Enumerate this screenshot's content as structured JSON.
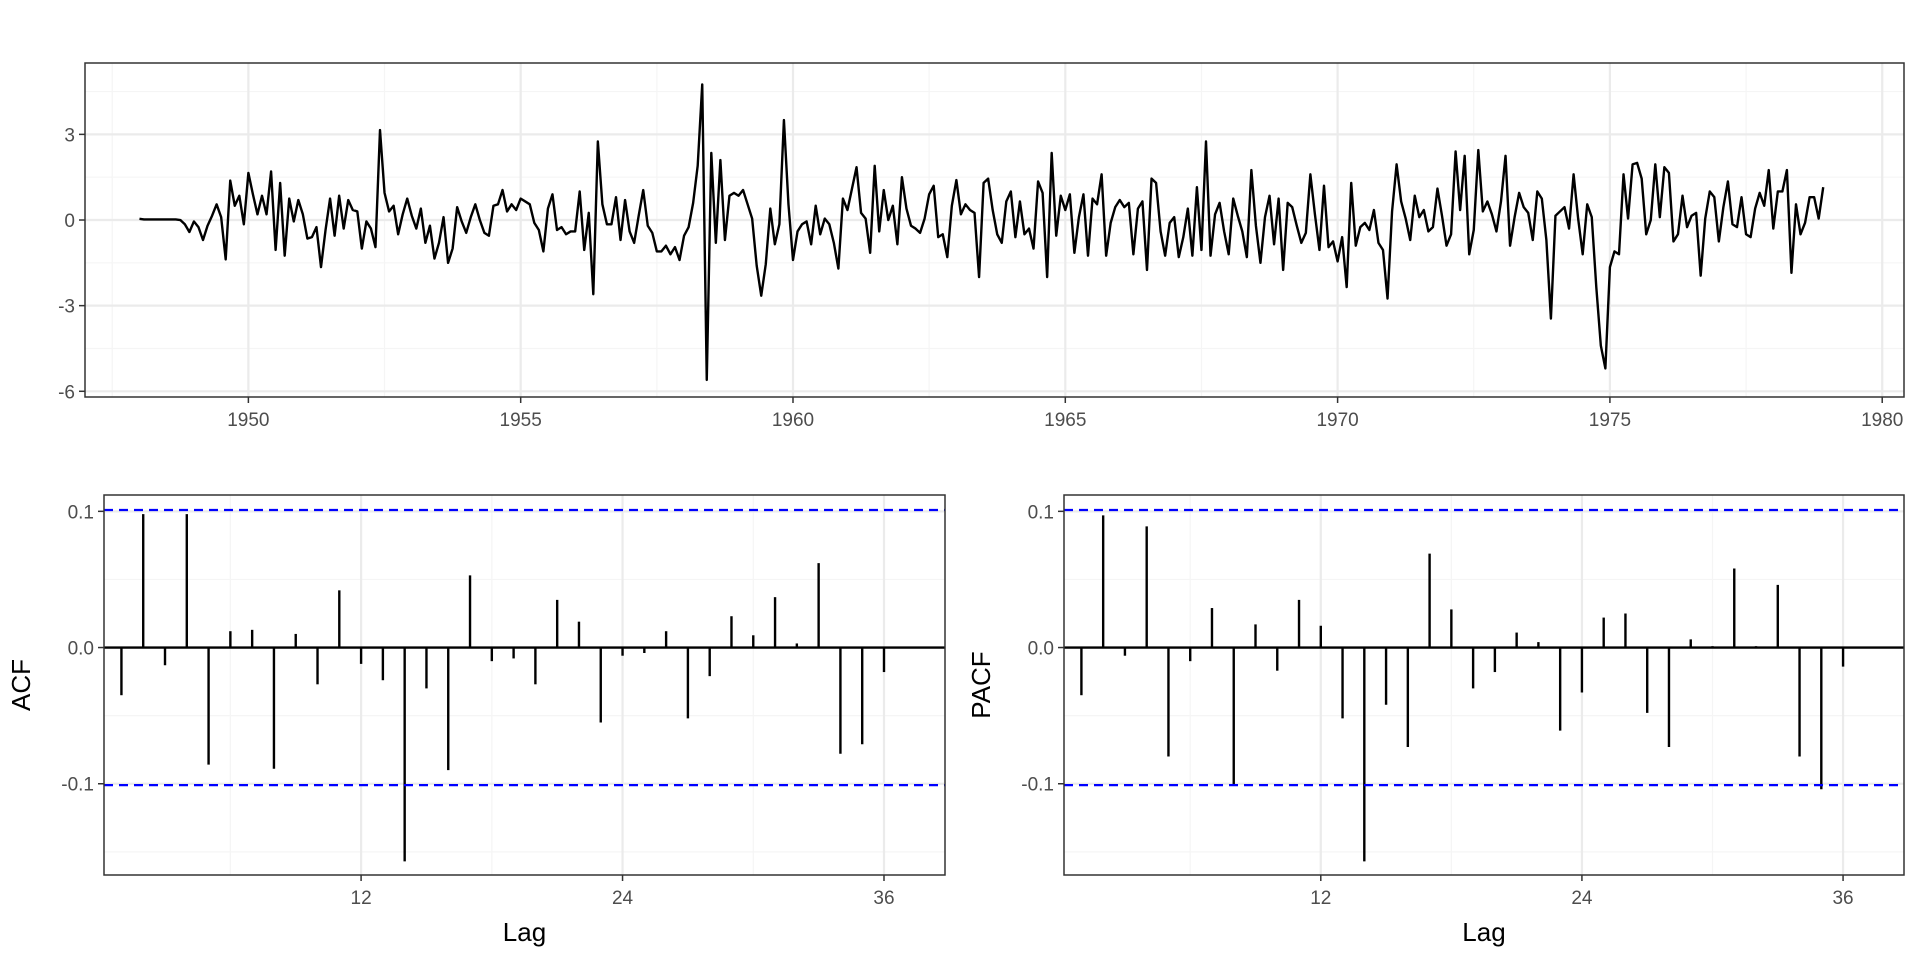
{
  "colors": {
    "line": "#000000",
    "ci": "#0000ff",
    "grid_major": "#ebebeb",
    "grid_minor": "#f5f5f5",
    "border": "#333333",
    "tick_text": "#4d4d4d"
  },
  "chart_data": [
    {
      "type": "line",
      "title": "",
      "xlabel": "",
      "ylabel": "",
      "xlim": [
        1947.0,
        1980.4
      ],
      "ylim": [
        -6.2,
        5.5
      ],
      "xticks": [
        1950,
        1955,
        1960,
        1965,
        1970,
        1975,
        1980
      ],
      "xtick_labels": [
        "1950",
        "1955",
        "1960",
        "1965",
        "1970",
        "1975",
        "1980"
      ],
      "yticks": [
        -6,
        -3,
        0,
        3
      ],
      "ytick_labels": [
        "-6",
        "-3",
        "0",
        "3"
      ],
      "grid": true,
      "x_start": 1948.0,
      "x_step": 0.08333333,
      "values": [
        0.04,
        0.02,
        0.02,
        0.02,
        0.02,
        0.02,
        0.02,
        0.02,
        0.02,
        0.0,
        -0.15,
        -0.42,
        -0.05,
        -0.25,
        -0.7,
        -0.2,
        0.15,
        0.55,
        0.1,
        -1.38,
        1.38,
        0.5,
        0.85,
        -0.15,
        1.65,
        0.9,
        0.2,
        0.85,
        0.2,
        1.7,
        -1.05,
        1.3,
        -1.25,
        0.75,
        -0.05,
        0.7,
        0.2,
        -0.65,
        -0.6,
        -0.25,
        -1.65,
        -0.35,
        0.75,
        -0.55,
        0.85,
        -0.3,
        0.7,
        0.35,
        0.3,
        -1.0,
        -0.05,
        -0.3,
        -0.95,
        3.15,
        0.95,
        0.3,
        0.5,
        -0.5,
        0.2,
        0.75,
        0.15,
        -0.3,
        0.4,
        -0.8,
        -0.2,
        -1.35,
        -0.8,
        0.1,
        -1.5,
        -1.0,
        0.45,
        -0.05,
        -0.45,
        0.1,
        0.55,
        0.0,
        -0.45,
        -0.55,
        0.5,
        0.55,
        1.05,
        0.3,
        0.55,
        0.35,
        0.75,
        0.65,
        0.55,
        -0.1,
        -0.35,
        -1.1,
        0.4,
        0.9,
        -0.35,
        -0.25,
        -0.5,
        -0.4,
        -0.4,
        1.0,
        -1.05,
        0.25,
        -2.6,
        2.75,
        0.55,
        -0.15,
        -0.15,
        0.8,
        -0.7,
        0.7,
        -0.4,
        -0.8,
        0.15,
        1.05,
        -0.2,
        -0.45,
        -1.1,
        -1.1,
        -0.9,
        -1.2,
        -0.95,
        -1.4,
        -0.55,
        -0.25,
        0.6,
        1.9,
        4.75,
        -5.6,
        2.35,
        -0.8,
        2.1,
        -0.7,
        0.85,
        0.95,
        0.85,
        1.05,
        0.55,
        0.05,
        -1.6,
        -2.65,
        -1.55,
        0.4,
        -0.85,
        -0.15,
        3.5,
        0.55,
        -1.4,
        -0.4,
        -0.15,
        -0.05,
        -0.85,
        0.5,
        -0.5,
        0.05,
        -0.15,
        -0.8,
        -1.7,
        0.75,
        0.35,
        1.1,
        1.85,
        0.25,
        0.05,
        -1.15,
        1.9,
        -0.4,
        1.05,
        0.0,
        0.5,
        -0.85,
        1.5,
        0.4,
        -0.2,
        -0.3,
        -0.45,
        0.05,
        0.9,
        1.2,
        -0.6,
        -0.5,
        -1.3,
        0.5,
        1.4,
        0.2,
        0.55,
        0.35,
        0.25,
        -2.0,
        1.3,
        1.45,
        0.35,
        -0.5,
        -0.8,
        0.65,
        1.0,
        -0.6,
        0.65,
        -0.5,
        -0.3,
        -1.0,
        1.35,
        0.95,
        -2.0,
        2.35,
        -0.55,
        0.85,
        0.35,
        0.9,
        -1.15,
        0.1,
        0.9,
        -1.25,
        0.75,
        0.55,
        1.6,
        -1.25,
        -0.1,
        0.45,
        0.7,
        0.45,
        0.6,
        -1.2,
        0.4,
        0.65,
        -1.75,
        1.45,
        1.3,
        -0.4,
        -1.25,
        -0.1,
        0.1,
        -1.3,
        -0.6,
        0.4,
        -1.25,
        1.15,
        -1.05,
        2.75,
        -1.25,
        0.2,
        0.6,
        -0.4,
        -1.2,
        0.75,
        0.15,
        -0.4,
        -1.3,
        1.75,
        -0.2,
        -1.5,
        0.1,
        0.85,
        -0.85,
        0.75,
        -1.75,
        0.6,
        0.45,
        -0.2,
        -0.8,
        -0.45,
        1.6,
        0.2,
        -1.05,
        1.2,
        -0.95,
        -0.75,
        -1.45,
        -0.6,
        -2.35,
        1.3,
        -0.9,
        -0.25,
        -0.1,
        -0.35,
        0.35,
        -0.8,
        -1.05,
        -2.75,
        0.3,
        1.95,
        0.65,
        0.05,
        -0.7,
        0.85,
        0.1,
        0.35,
        -0.4,
        -0.25,
        1.1,
        0.15,
        -0.9,
        -0.5,
        2.4,
        0.35,
        2.25,
        -1.2,
        -0.35,
        2.45,
        0.3,
        0.65,
        0.2,
        -0.4,
        0.65,
        2.25,
        -0.9,
        0.1,
        0.95,
        0.45,
        0.25,
        -0.7,
        1.0,
        0.75,
        -0.7,
        -3.45,
        0.15,
        0.3,
        0.45,
        -0.3,
        1.6,
        0.05,
        -1.2,
        0.55,
        0.1,
        -2.35,
        -4.4,
        -5.2,
        -1.65,
        -1.1,
        -1.2,
        1.6,
        0.05,
        1.95,
        2.0,
        1.45,
        -0.5,
        0.0,
        1.95,
        0.1,
        1.85,
        1.65,
        -0.75,
        -0.5,
        0.85,
        -0.25,
        0.15,
        0.25,
        -1.95,
        0.05,
        1.0,
        0.8,
        -0.75,
        0.45,
        1.35,
        -0.15,
        -0.25,
        0.8,
        -0.5,
        -0.6,
        0.4,
        0.95,
        0.5,
        1.75,
        -0.3,
        1.0,
        1.0,
        1.75,
        -1.85,
        0.55,
        -0.5,
        -0.1,
        0.8,
        0.8,
        0.05,
        1.15
      ]
    },
    {
      "type": "bar",
      "title": "",
      "xlabel": "Lag",
      "ylabel": "ACF",
      "xlim": [
        0.2,
        38.8
      ],
      "ylim": [
        -0.167,
        0.112
      ],
      "xticks": [
        12,
        24,
        36
      ],
      "xtick_labels": [
        "12",
        "24",
        "36"
      ],
      "yticks": [
        -0.1,
        0.0,
        0.1
      ],
      "ytick_labels": [
        "-0.1",
        "0.0",
        "0.1"
      ],
      "ci": [
        0.101,
        -0.101
      ],
      "grid": true,
      "lags": [
        1,
        2,
        3,
        4,
        5,
        6,
        7,
        8,
        9,
        10,
        11,
        12,
        13,
        14,
        15,
        16,
        17,
        18,
        19,
        20,
        21,
        22,
        23,
        24,
        25,
        26,
        27,
        28,
        29,
        30,
        31,
        32,
        33,
        34,
        35,
        36
      ],
      "values": [
        -0.035,
        0.098,
        -0.013,
        0.098,
        -0.086,
        0.012,
        0.013,
        -0.089,
        0.01,
        -0.027,
        0.042,
        -0.012,
        -0.024,
        -0.157,
        -0.03,
        -0.09,
        0.053,
        -0.01,
        -0.008,
        -0.027,
        0.035,
        0.019,
        -0.055,
        -0.006,
        -0.004,
        0.012,
        -0.052,
        -0.021,
        0.023,
        0.009,
        0.037,
        0.003,
        0.062,
        -0.078,
        -0.071,
        -0.018
      ]
    },
    {
      "type": "bar",
      "title": "",
      "xlabel": "Lag",
      "ylabel": "PACF",
      "xlim": [
        0.2,
        38.8
      ],
      "ylim": [
        -0.167,
        0.112
      ],
      "xticks": [
        12,
        24,
        36
      ],
      "xtick_labels": [
        "12",
        "24",
        "36"
      ],
      "yticks": [
        -0.1,
        0.0,
        0.1
      ],
      "ytick_labels": [
        "-0.1",
        "0.0",
        "0.1"
      ],
      "ci": [
        0.101,
        -0.101
      ],
      "grid": true,
      "lags": [
        1,
        2,
        3,
        4,
        5,
        6,
        7,
        8,
        9,
        10,
        11,
        12,
        13,
        14,
        15,
        16,
        17,
        18,
        19,
        20,
        21,
        22,
        23,
        24,
        25,
        26,
        27,
        28,
        29,
        30,
        31,
        32,
        33,
        34,
        35,
        36
      ],
      "values": [
        -0.035,
        0.097,
        -0.006,
        0.089,
        -0.08,
        -0.01,
        0.029,
        -0.101,
        0.017,
        -0.017,
        0.035,
        0.016,
        -0.052,
        -0.157,
        -0.042,
        -0.073,
        0.069,
        0.028,
        -0.03,
        -0.018,
        0.011,
        0.004,
        -0.061,
        -0.033,
        0.022,
        0.025,
        -0.048,
        -0.073,
        0.006,
        0.001,
        0.058,
        0.001,
        0.046,
        -0.08,
        -0.104,
        -0.014
      ]
    }
  ]
}
